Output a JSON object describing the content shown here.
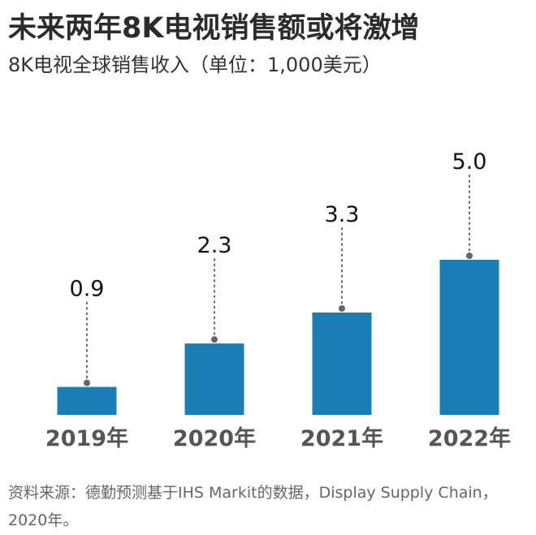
{
  "chart_data": {
    "type": "bar",
    "title": "未来两年8K电视销售额或将激增",
    "subtitle": "8K电视全球销售收入（单位：1,000美元）",
    "categories": [
      "2019年",
      "2020年",
      "2021年",
      "2022年"
    ],
    "values": [
      0.9,
      2.3,
      3.3,
      5.0
    ],
    "value_labels": [
      "0.9",
      "2.3",
      "3.3",
      "5.0"
    ],
    "ylim": [
      0,
      5.0
    ],
    "grid": false,
    "legend": "none",
    "colors": {
      "bar": "#1a7db6",
      "dot": "#666666",
      "category_text": "#555555"
    }
  },
  "source": "资料来源：德勤预测基于IHS Markit的数据，Display Supply Chain，2020年。"
}
